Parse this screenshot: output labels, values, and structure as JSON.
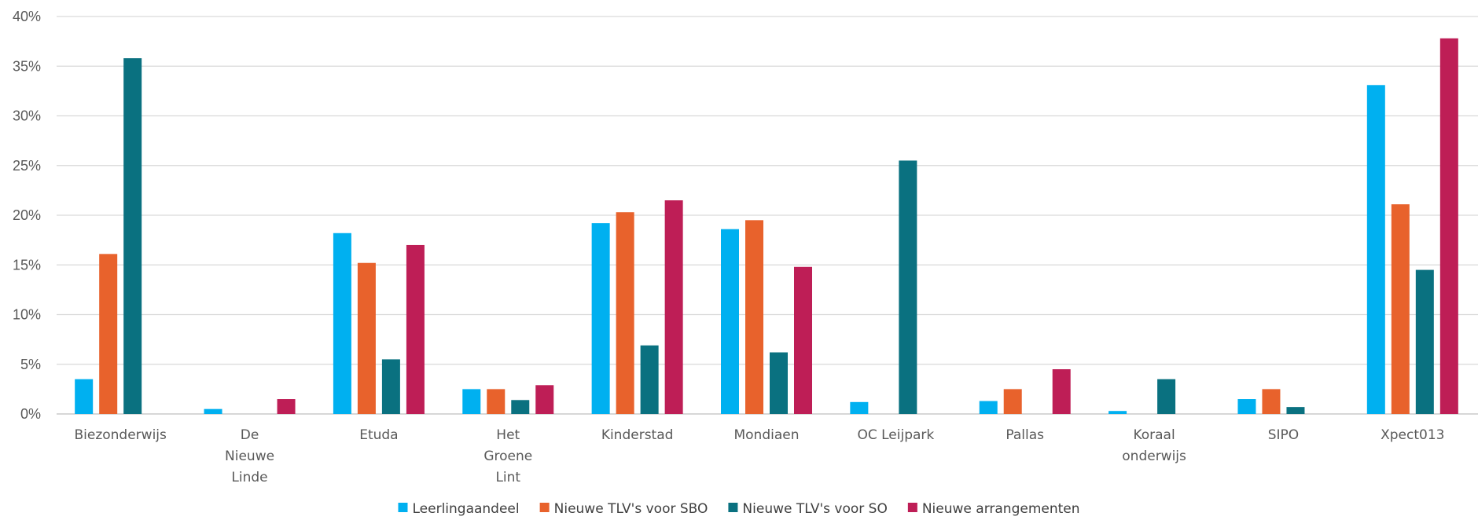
{
  "chart_data": {
    "type": "bar",
    "title": "",
    "xlabel": "",
    "ylabel": "",
    "ylim": [
      0,
      0.4
    ],
    "y_ticks": [
      "0%",
      "5%",
      "10%",
      "15%",
      "20%",
      "25%",
      "30%",
      "35%",
      "40%"
    ],
    "grid": true,
    "legend_position": "bottom",
    "categories": [
      [
        "Biezonderwijs"
      ],
      [
        "De",
        "Nieuwe",
        "Linde"
      ],
      [
        "Etuda"
      ],
      [
        "Het",
        "Groene",
        "Lint"
      ],
      [
        "Kinderstad"
      ],
      [
        "Mondiaen"
      ],
      [
        "OC Leijpark"
      ],
      [
        "Pallas"
      ],
      [
        "Koraal",
        "onderwijs"
      ],
      [
        "SIPO"
      ],
      [
        "Xpect013"
      ]
    ],
    "series": [
      {
        "name": "Leerlingaandeel",
        "color": "#00B0F0",
        "values": [
          0.035,
          0.005,
          0.182,
          0.025,
          0.192,
          0.186,
          0.012,
          0.013,
          0.003,
          0.015,
          0.331
        ]
      },
      {
        "name": "Nieuwe TLV's voor SBO",
        "color": "#E8622C",
        "values": [
          0.161,
          0.0,
          0.152,
          0.025,
          0.203,
          0.195,
          0.0,
          0.025,
          0.0,
          0.025,
          0.211
        ]
      },
      {
        "name": "Nieuwe TLV's voor SO",
        "color": "#0A7180",
        "values": [
          0.358,
          0.0,
          0.055,
          0.014,
          0.069,
          0.062,
          0.255,
          0.0,
          0.035,
          0.007,
          0.145
        ]
      },
      {
        "name": "Nieuwe arrangementen",
        "color": "#BE1E56",
        "values": [
          0.0,
          0.015,
          0.17,
          0.029,
          0.215,
          0.148,
          0.0,
          0.045,
          0.0,
          0.0,
          0.378
        ]
      }
    ]
  }
}
